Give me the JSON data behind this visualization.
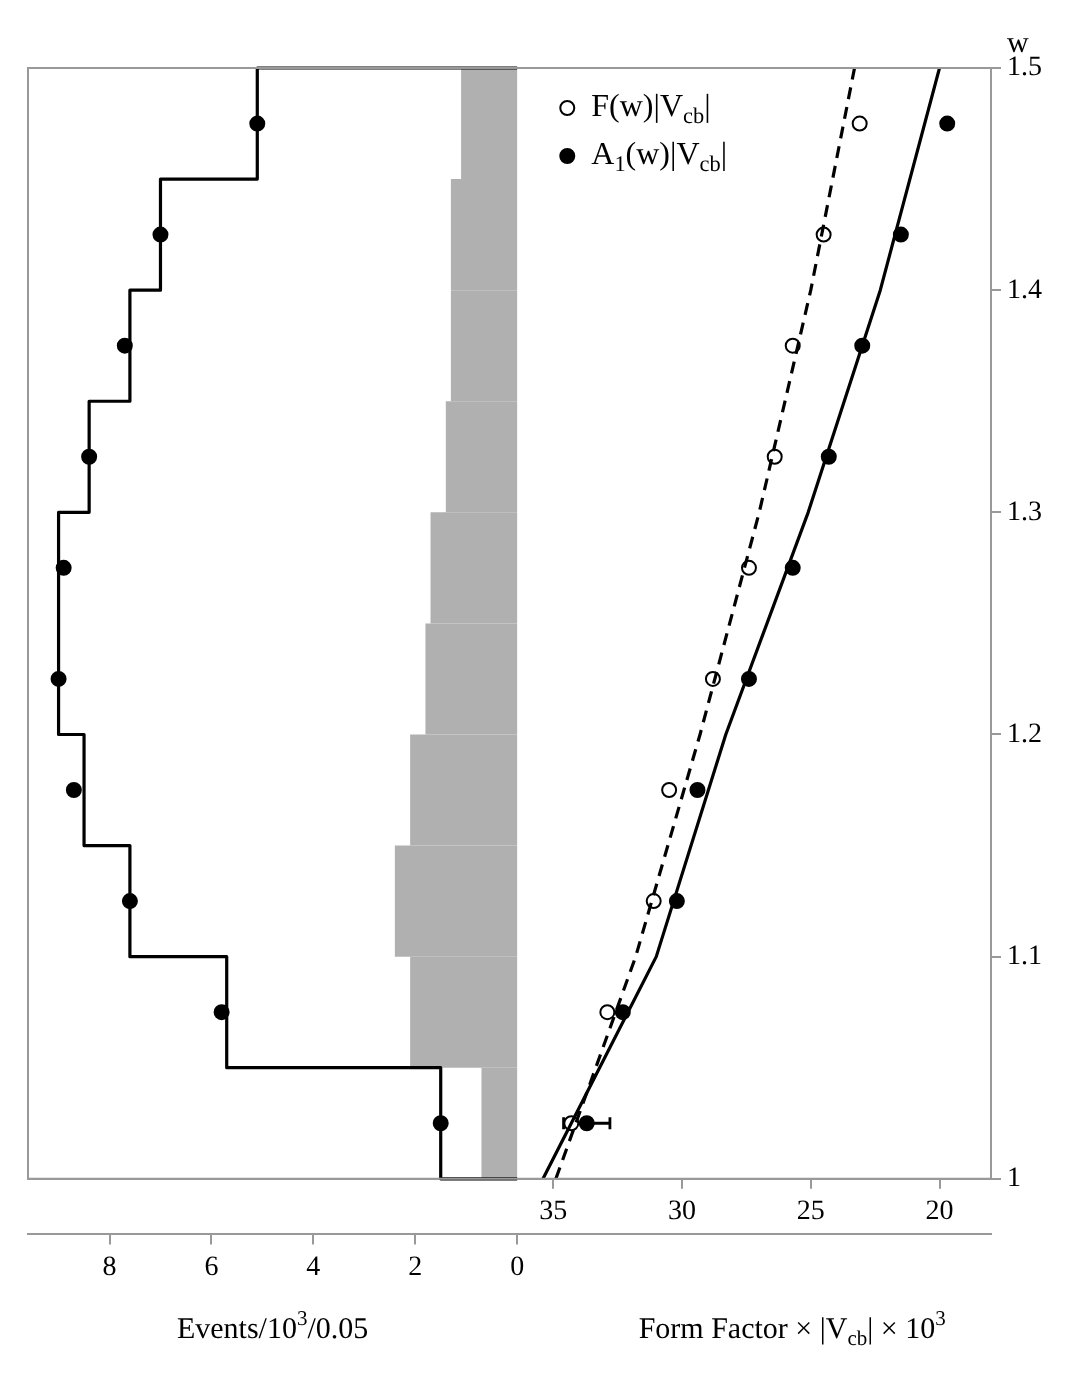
{
  "chart_data": {
    "type": "scatter",
    "orientation": "horizontal",
    "xlabel": "Form Factor × |V$_{cb}$| × 10$^{3}$",
    "x2label": "Events/10$^{3}$/0.05",
    "ylabel": "w",
    "xlim": [
      55.4,
      18.0
    ],
    "xticks": [
      35,
      30,
      25,
      20
    ],
    "x2lim": [
      9.6,
      -9.3
    ],
    "x2ticks": [
      0,
      2,
      4,
      6,
      8
    ],
    "ylim": [
      1,
      1.5
    ],
    "yticks": [
      1,
      1.1,
      1.2,
      1.3,
      1.4,
      1.5
    ],
    "grid": false,
    "legend": "top",
    "marker": "circle",
    "series": [
      {
        "type": "histogram",
        "axis": "x2",
        "color": "#b0b0b0",
        "bins": [
          1,
          1.05,
          1.1,
          1.15,
          1.2,
          1.25,
          1.3,
          1.35,
          1.4,
          1.45,
          1.5
        ],
        "values": [
          0.7,
          2.1,
          2.4,
          2.1,
          1.8,
          1.7,
          1.4,
          1.3,
          1.3,
          1.1
        ]
      },
      {
        "type": "histogram",
        "axis": "x2",
        "color": "#000000",
        "bins": [
          1,
          1.05,
          1.1,
          1.15,
          1.2,
          1.25,
          1.3,
          1.35,
          1.4,
          1.45,
          1.5
        ],
        "values": [
          1.5,
          5.7,
          7.6,
          8.5,
          9.0,
          9.0,
          8.4,
          7.6,
          7.0,
          5.1
        ]
      },
      {
        "axis": "x2",
        "color": "#000000",
        "x": [
          1.025,
          1.075,
          1.125,
          1.175,
          1.225,
          1.275,
          1.325,
          1.375,
          1.425,
          1.475
        ],
        "values": [
          1.5,
          5.8,
          7.6,
          8.7,
          9.0,
          8.9,
          8.4,
          7.7,
          7.0,
          5.1
        ]
      },
      {
        "type": "line",
        "marker": "none",
        "color": "#000000",
        "line_style": "dashed",
        "x": [
          1,
          1.1,
          1.2,
          1.3,
          1.4,
          1.5
        ],
        "values": [
          34.9,
          31.8,
          29.3,
          27.0,
          25.0,
          23.3
        ]
      },
      {
        "type": "line",
        "marker": "none",
        "color": "#000000",
        "line_style": "solid",
        "x": [
          1,
          1.1,
          1.2,
          1.3,
          1.4,
          1.5
        ],
        "values": [
          35.4,
          31.0,
          28.3,
          25.1,
          22.3,
          20.0
        ]
      },
      {
        "name": "F(w)|V$_{cb}$|",
        "color": "#ffffff",
        "x": [
          1.025,
          1.075,
          1.125,
          1.175,
          1.225,
          1.275,
          1.325,
          1.375,
          1.425,
          1.475
        ],
        "values": [
          34.3,
          32.9,
          31.1,
          30.5,
          28.8,
          27.4,
          26.4,
          25.7,
          24.5,
          23.1
        ]
      },
      {
        "name": "A$_{1}$(w)|V$_{cb}$|",
        "color": "#000000",
        "x": [
          1.025,
          1.075,
          1.125,
          1.175,
          1.225,
          1.275,
          1.325,
          1.375,
          1.425,
          1.475
        ],
        "values": [
          33.7,
          32.3,
          30.2,
          29.4,
          27.4,
          25.7,
          24.3,
          23.0,
          21.5,
          19.7
        ],
        "errors": [
          0.9,
          null,
          null,
          null,
          null,
          null,
          null,
          null,
          null,
          null
        ]
      }
    ]
  }
}
